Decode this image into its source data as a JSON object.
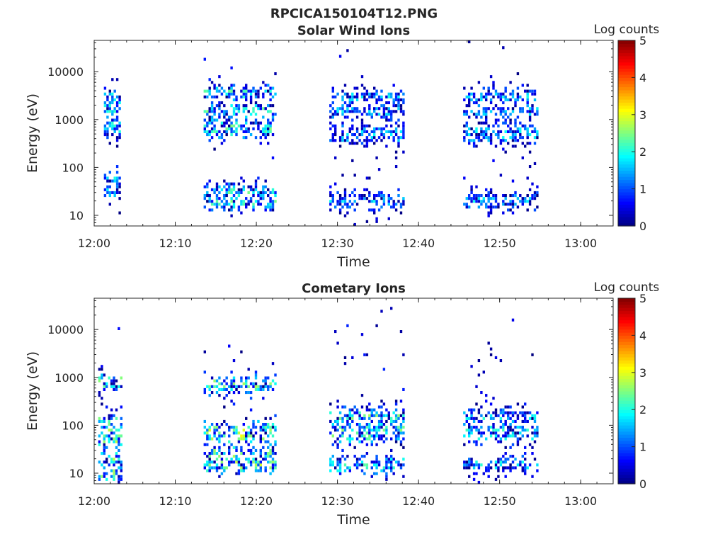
{
  "figure": {
    "title": "RPCICA150104T12.PNG"
  },
  "colormap": [
    "#00007f",
    "#0000ff",
    "#007fff",
    "#00ffff",
    "#7fff7f",
    "#ffff00",
    "#ff7f00",
    "#ff0000",
    "#7f0000"
  ],
  "chart_data": [
    {
      "type": "heatmap",
      "title": "Solar Wind Ions",
      "xlabel": "Time",
      "ylabel": "Energy (eV)",
      "x_ticks": [
        "12:00",
        "12:10",
        "12:20",
        "12:30",
        "12:40",
        "12:50",
        "13:00"
      ],
      "x_range": [
        "12:00",
        "13:04"
      ],
      "y_scale": "log",
      "y_ticks": [
        10,
        100,
        1000,
        10000
      ],
      "y_range": [
        6,
        45000
      ],
      "colorbar": {
        "label": "Log counts",
        "ticks": [
          0,
          1,
          2,
          3,
          4,
          5
        ],
        "range": [
          0,
          5
        ]
      },
      "bursts": [
        {
          "start_min": 1.2,
          "end_min": 3.0,
          "core_eV": [
            30,
            60,
            600,
            800,
            1500,
            2000,
            3000
          ],
          "max_level": 2.2
        },
        {
          "start_min": 13.5,
          "end_min": 22.5,
          "core_eV": [
            20,
            30,
            600,
            700,
            1500,
            3500
          ],
          "max_level": 2.6
        },
        {
          "start_min": 29.0,
          "end_min": 38.0,
          "core_eV": [
            20,
            450,
            550,
            1500,
            3000
          ],
          "max_level": 2.0
        },
        {
          "start_min": 45.5,
          "end_min": 54.5,
          "core_eV": [
            20,
            450,
            600,
            1500,
            3000
          ],
          "max_level": 2.0
        }
      ]
    },
    {
      "type": "heatmap",
      "title": "Cometary Ions",
      "xlabel": "Time",
      "ylabel": "Energy (eV)",
      "x_ticks": [
        "12:00",
        "12:10",
        "12:20",
        "12:30",
        "12:40",
        "12:50",
        "13:00"
      ],
      "x_range": [
        "12:00",
        "13:04"
      ],
      "y_scale": "log",
      "y_ticks": [
        10,
        100,
        1000,
        10000
      ],
      "y_range": [
        6,
        45000
      ],
      "colorbar": {
        "label": "Log counts",
        "ticks": [
          0,
          1,
          2,
          3,
          4,
          5
        ],
        "range": [
          0,
          5
        ]
      },
      "bursts": [
        {
          "start_min": 0.5,
          "end_min": 3.3,
          "core_eV": [
            10,
            20,
            50,
            80,
            120,
            800
          ],
          "max_level": 3.0
        },
        {
          "start_min": 13.5,
          "end_min": 22.5,
          "core_eV": [
            15,
            25,
            60,
            80,
            700
          ],
          "max_level": 3.1
        },
        {
          "start_min": 29.0,
          "end_min": 38.0,
          "core_eV": [
            15,
            60,
            80,
            150
          ],
          "max_level": 2.7
        },
        {
          "start_min": 45.5,
          "end_min": 54.5,
          "core_eV": [
            15,
            60,
            80,
            150
          ],
          "max_level": 2.2
        }
      ]
    }
  ]
}
